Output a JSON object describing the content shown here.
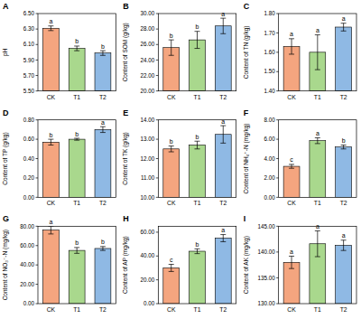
{
  "chart_data": [
    {
      "type": "bar",
      "title": "A",
      "y_label": "pH",
      "categories": [
        "CK",
        "T1",
        "T2"
      ],
      "values": [
        6.31,
        6.05,
        5.99
      ],
      "errors": [
        0.03,
        0.03,
        0.03
      ],
      "annotations": [
        "a",
        "b",
        "b"
      ],
      "colors": [
        "#f4a57f",
        "#a9d88d",
        "#8fb9e4"
      ],
      "ylim": [
        5.5,
        6.5
      ],
      "yticks": [
        {
          "value": 5.5,
          "label": "5.50"
        },
        {
          "value": 5.7,
          "label": "5.70"
        },
        {
          "value": 5.9,
          "label": "5.90"
        },
        {
          "value": 6.1,
          "label": "6.10"
        },
        {
          "value": 6.3,
          "label": "6.30"
        },
        {
          "value": 6.5,
          "label": "6.50"
        }
      ]
    },
    {
      "type": "bar",
      "title": "B",
      "y_label": "Content of SOM (g/kg)",
      "categories": [
        "CK",
        "T1",
        "T2"
      ],
      "values": [
        25.6,
        26.6,
        28.4
      ],
      "errors": [
        1.0,
        1.1,
        1.0
      ],
      "annotations": [
        "b",
        "b",
        "a"
      ],
      "colors": [
        "#f4a57f",
        "#a9d88d",
        "#8fb9e4"
      ],
      "ylim": [
        20,
        30
      ],
      "yticks": [
        {
          "value": 20,
          "label": "20.00"
        },
        {
          "value": 22,
          "label": "22.00"
        },
        {
          "value": 24,
          "label": "24.00"
        },
        {
          "value": 26,
          "label": "26.00"
        },
        {
          "value": 28,
          "label": "28.00"
        },
        {
          "value": 30,
          "label": "30.00"
        }
      ]
    },
    {
      "type": "bar",
      "title": "C",
      "y_label": "Content of TN (g/kg)",
      "categories": [
        "CK",
        "T1",
        "T2"
      ],
      "values": [
        1.63,
        1.6,
        1.73
      ],
      "errors": [
        0.04,
        0.09,
        0.02
      ],
      "annotations": [
        "a",
        "a",
        "a"
      ],
      "colors": [
        "#f4a57f",
        "#a9d88d",
        "#8fb9e4"
      ],
      "ylim": [
        1.4,
        1.8
      ],
      "yticks": [
        {
          "value": 1.4,
          "label": "1.40"
        },
        {
          "value": 1.5,
          "label": "1.50"
        },
        {
          "value": 1.6,
          "label": "1.60"
        },
        {
          "value": 1.7,
          "label": "1.70"
        },
        {
          "value": 1.8,
          "label": "1.80"
        }
      ]
    },
    {
      "type": "bar",
      "title": "D",
      "y_label": "Content of TP (g/kg)",
      "categories": [
        "CK",
        "T1",
        "T2"
      ],
      "values": [
        0.57,
        0.6,
        0.7
      ],
      "errors": [
        0.03,
        0.01,
        0.03
      ],
      "annotations": [
        "b",
        "b",
        "a"
      ],
      "colors": [
        "#f4a57f",
        "#a9d88d",
        "#8fb9e4"
      ],
      "ylim": [
        0,
        0.8
      ],
      "yticks": [
        {
          "value": 0,
          "label": "0.00"
        },
        {
          "value": 0.2,
          "label": "0.20"
        },
        {
          "value": 0.4,
          "label": "0.40"
        },
        {
          "value": 0.6,
          "label": "0.60"
        },
        {
          "value": 0.8,
          "label": "0.80"
        }
      ]
    },
    {
      "type": "bar",
      "title": "E",
      "y_label": "Content of TK (g/kg)",
      "categories": [
        "CK",
        "T1",
        "T2"
      ],
      "values": [
        12.5,
        12.7,
        13.25
      ],
      "errors": [
        0.15,
        0.2,
        0.45
      ],
      "annotations": [
        "b",
        "b",
        "a"
      ],
      "colors": [
        "#f4a57f",
        "#a9d88d",
        "#8fb9e4"
      ],
      "ylim": [
        10,
        14
      ],
      "yticks": [
        {
          "value": 10,
          "label": "10.00"
        },
        {
          "value": 11,
          "label": "11.00"
        },
        {
          "value": 12,
          "label": "12.00"
        },
        {
          "value": 13,
          "label": "13.00"
        },
        {
          "value": 14,
          "label": "14.00"
        }
      ]
    },
    {
      "type": "bar",
      "title": "F",
      "y_label": "Content of NH₄⁺-N (mg/kg)",
      "categories": [
        "CK",
        "T1",
        "T2"
      ],
      "values": [
        3.2,
        5.85,
        5.2
      ],
      "errors": [
        0.2,
        0.3,
        0.2
      ],
      "annotations": [
        "c",
        "a",
        "b"
      ],
      "colors": [
        "#f4a57f",
        "#a9d88d",
        "#8fb9e4"
      ],
      "ylim": [
        0,
        8
      ],
      "yticks": [
        {
          "value": 0,
          "label": "0.00"
        },
        {
          "value": 2,
          "label": "2.00"
        },
        {
          "value": 4,
          "label": "4.00"
        },
        {
          "value": 6,
          "label": "6.00"
        },
        {
          "value": 8,
          "label": "8.00"
        }
      ]
    },
    {
      "type": "bar",
      "title": "G",
      "y_label": "Content of NO₃⁻-N (mg/kg)",
      "categories": [
        "CK",
        "T1",
        "T2"
      ],
      "values": [
        76,
        55,
        57
      ],
      "errors": [
        4,
        3,
        2
      ],
      "annotations": [
        "a",
        "b",
        "b"
      ],
      "colors": [
        "#f4a57f",
        "#a9d88d",
        "#8fb9e4"
      ],
      "ylim": [
        0,
        80
      ],
      "yticks": [
        {
          "value": 0,
          "label": "0.00"
        },
        {
          "value": 20,
          "label": "20.00"
        },
        {
          "value": 40,
          "label": "40.00"
        },
        {
          "value": 60,
          "label": "60.00"
        },
        {
          "value": 80,
          "label": "80.00"
        }
      ]
    },
    {
      "type": "bar",
      "title": "H",
      "y_label": "Content of AP (mg/kg)",
      "categories": [
        "CK",
        "T1",
        "T2"
      ],
      "values": [
        30,
        44,
        55
      ],
      "errors": [
        3,
        2,
        3
      ],
      "annotations": [
        "c",
        "b",
        "a"
      ],
      "colors": [
        "#f4a57f",
        "#a9d88d",
        "#8fb9e4"
      ],
      "ylim": [
        0,
        65
      ],
      "yticks": [
        {
          "value": 0,
          "label": "0.00"
        },
        {
          "value": 20,
          "label": "20.00"
        },
        {
          "value": 40,
          "label": "40.00"
        },
        {
          "value": 60,
          "label": "60.00"
        }
      ]
    },
    {
      "type": "bar",
      "title": "I",
      "y_label": "Content of AK (mg/kg)",
      "categories": [
        "CK",
        "T1",
        "T2"
      ],
      "values": [
        138,
        141.6,
        141.3
      ],
      "errors": [
        1.2,
        2.5,
        1.0
      ],
      "annotations": [
        "a",
        "a",
        "a"
      ],
      "colors": [
        "#f4a57f",
        "#a9d88d",
        "#8fb9e4"
      ],
      "ylim": [
        130,
        145
      ],
      "yticks": [
        {
          "value": 130,
          "label": "130.00"
        },
        {
          "value": 135,
          "label": "135.00"
        },
        {
          "value": 140,
          "label": "140.00"
        },
        {
          "value": 145,
          "label": "145.00"
        }
      ]
    }
  ]
}
